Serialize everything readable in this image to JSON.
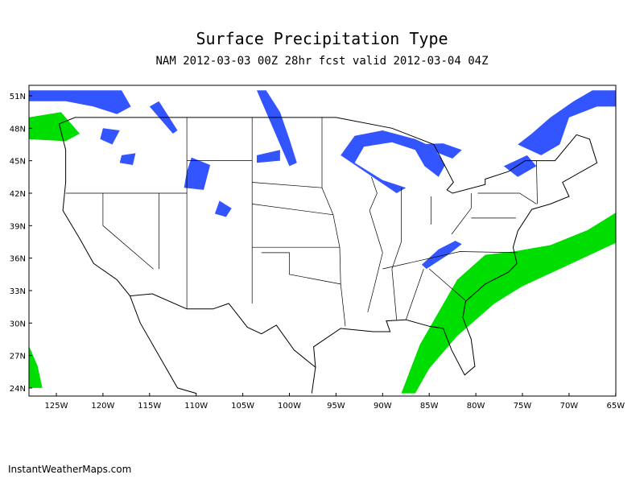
{
  "header": {
    "title": "Surface Precipitation Type",
    "subtitle": "NAM 2012-03-03 00Z 28hr fcst valid 2012-03-04 04Z"
  },
  "map": {
    "lat_labels": [
      "51N",
      "48N",
      "45N",
      "42N",
      "39N",
      "36N",
      "33N",
      "30N",
      "27N",
      "24N"
    ],
    "lon_labels": [
      "125W",
      "120W",
      "115W",
      "110W",
      "105W",
      "100W",
      "95W",
      "90W",
      "85W",
      "80W",
      "75W",
      "70W",
      "65W"
    ]
  },
  "footer": {
    "credit": "InstantWeatherMaps.com"
  }
}
